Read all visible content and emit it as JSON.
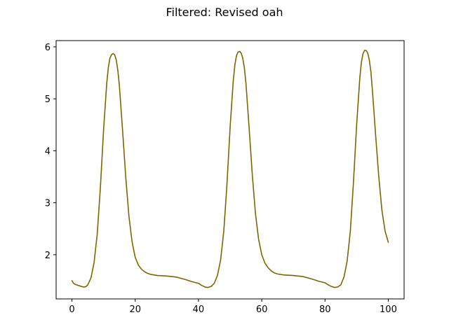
{
  "chart_data": {
    "type": "line",
    "title": "Filtered: Revised oah",
    "xlabel": "",
    "ylabel": "",
    "xlim": [
      -5,
      105
    ],
    "ylim": [
      1.15,
      6.12
    ],
    "xticks": [
      0,
      20,
      40,
      60,
      80,
      100
    ],
    "yticks": [
      2,
      3,
      4,
      5,
      6
    ],
    "grid": false,
    "series": [
      {
        "color": "#7f6500",
        "x": [
          0,
          0.5,
          1,
          2,
          3,
          3.5,
          4,
          4.5,
          5,
          6,
          7,
          8,
          9,
          10,
          11,
          11.5,
          12,
          12.5,
          13,
          13.5,
          14,
          14.5,
          15,
          16,
          17,
          18,
          19,
          20,
          21,
          22,
          23,
          24,
          25,
          27,
          30,
          33,
          36,
          38,
          40,
          41,
          42,
          43,
          44,
          45,
          46,
          47,
          48,
          49,
          50,
          51,
          51.5,
          52,
          52.5,
          53,
          53.5,
          54,
          54.5,
          55,
          56,
          57,
          58,
          59,
          60,
          61,
          62,
          63,
          64,
          65,
          67,
          70,
          73,
          76,
          78,
          80,
          81,
          82,
          83,
          84,
          85,
          86,
          87,
          88,
          89,
          90,
          91,
          91.5,
          92,
          92.5,
          93,
          93.5,
          94,
          94.5,
          95,
          96,
          97,
          98,
          99,
          100
        ],
        "y": [
          1.5,
          1.45,
          1.43,
          1.41,
          1.39,
          1.38,
          1.38,
          1.39,
          1.42,
          1.55,
          1.85,
          2.4,
          3.3,
          4.4,
          5.3,
          5.6,
          5.78,
          5.85,
          5.87,
          5.85,
          5.75,
          5.55,
          5.25,
          4.4,
          3.5,
          2.75,
          2.25,
          1.95,
          1.8,
          1.72,
          1.67,
          1.64,
          1.62,
          1.6,
          1.59,
          1.57,
          1.52,
          1.48,
          1.45,
          1.41,
          1.38,
          1.37,
          1.39,
          1.45,
          1.6,
          1.9,
          2.45,
          3.35,
          4.45,
          5.35,
          5.65,
          5.83,
          5.9,
          5.91,
          5.88,
          5.78,
          5.6,
          5.3,
          4.45,
          3.55,
          2.8,
          2.3,
          2.0,
          1.84,
          1.75,
          1.69,
          1.65,
          1.63,
          1.61,
          1.6,
          1.58,
          1.53,
          1.49,
          1.46,
          1.42,
          1.39,
          1.37,
          1.38,
          1.42,
          1.57,
          1.88,
          2.45,
          3.4,
          4.5,
          5.4,
          5.7,
          5.87,
          5.93,
          5.93,
          5.88,
          5.75,
          5.52,
          5.15,
          4.3,
          3.5,
          2.85,
          2.45,
          2.24
        ]
      }
    ]
  }
}
